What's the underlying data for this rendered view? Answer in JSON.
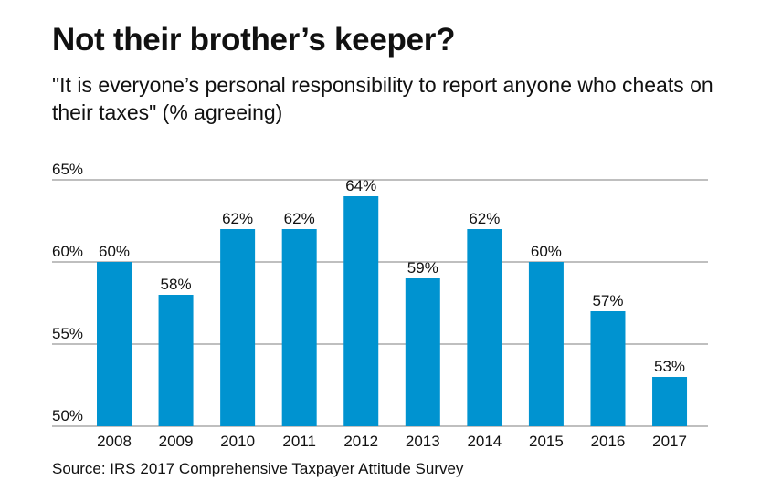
{
  "title": "Not their brother’s keeper?",
  "subtitle": "\"It is everyone’s personal responsibility to report anyone who cheats on their taxes\" (% agreeing)",
  "source": "Source: IRS 2017 Comprehensive Taxpayer Attitude Survey",
  "chart_data": {
    "type": "bar",
    "categories": [
      "2008",
      "2009",
      "2010",
      "2011",
      "2012",
      "2013",
      "2014",
      "2015",
      "2016",
      "2017"
    ],
    "values": [
      60,
      58,
      62,
      62,
      64,
      59,
      62,
      60,
      57,
      53
    ],
    "data_labels": [
      "60%",
      "58%",
      "62%",
      "62%",
      "64%",
      "59%",
      "62%",
      "60%",
      "57%",
      "53%"
    ],
    "ylim": [
      50,
      65
    ],
    "yticks": [
      50,
      55,
      60,
      65
    ],
    "ytick_labels": [
      "50%",
      "55%",
      "60%",
      "65%"
    ],
    "grid": true,
    "bar_color": "#0093D0",
    "grid_color": "#999999"
  }
}
